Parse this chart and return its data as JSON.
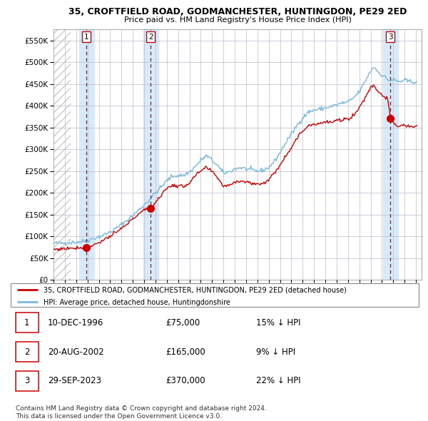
{
  "title": "35, CROFTFIELD ROAD, GODMANCHESTER, HUNTINGDON, PE29 2ED",
  "subtitle": "Price paid vs. HM Land Registry's House Price Index (HPI)",
  "legend_line1": "35, CROFTFIELD ROAD, GODMANCHESTER, HUNTINGDON, PE29 2ED (detached house)",
  "legend_line2": "HPI: Average price, detached house, Huntingdonshire",
  "sale1_date": "10-DEC-1996",
  "sale1_price": 75000,
  "sale1_pct": "15% ↓ HPI",
  "sale2_date": "20-AUG-2002",
  "sale2_price": 165000,
  "sale2_pct": "9% ↓ HPI",
  "sale3_date": "29-SEP-2023",
  "sale3_price": 370000,
  "sale3_pct": "22% ↓ HPI",
  "footer1": "Contains HM Land Registry data © Crown copyright and database right 2024.",
  "footer2": "This data is licensed under the Open Government Licence v3.0.",
  "hpi_color": "#7ab8d9",
  "price_color": "#cc0000",
  "dot_color": "#cc0000",
  "vline_color": "#cc0000",
  "shade_color": "#d8eaf8",
  "grid_color": "#bbbbcc",
  "bg_color": "#ffffff",
  "ylim_max": 575000,
  "yticks": [
    0,
    50000,
    100000,
    150000,
    200000,
    250000,
    300000,
    350000,
    400000,
    450000,
    500000,
    550000
  ],
  "xlim_start": 1994.0,
  "xlim_end": 2026.5,
  "hatch_end": 1995.5,
  "sale1_t": 1996.917,
  "sale2_t": 2002.583,
  "sale3_t": 2023.75
}
